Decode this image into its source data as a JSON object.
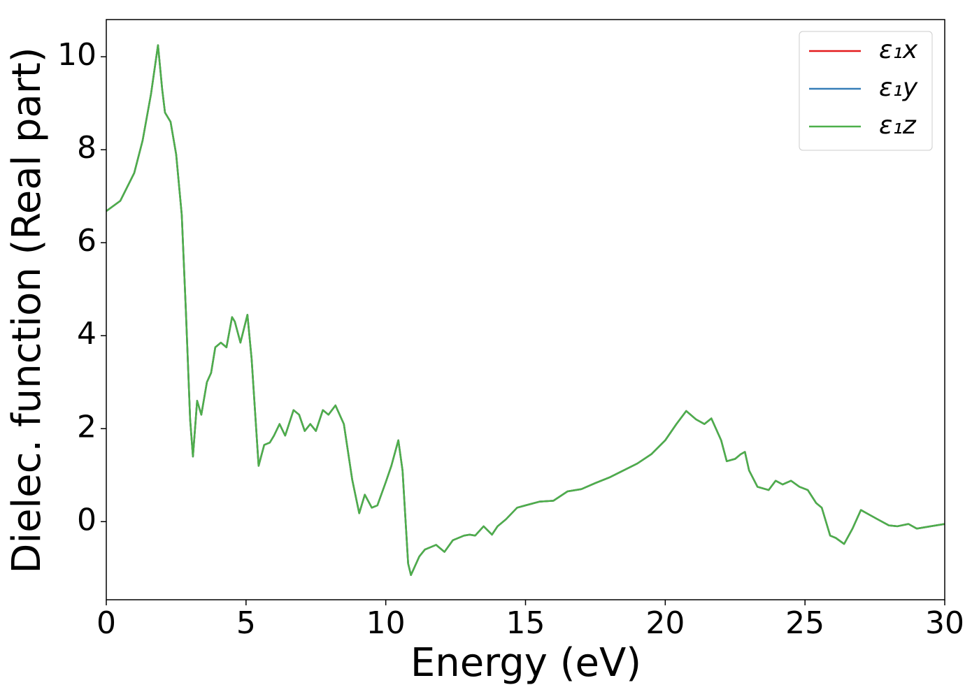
{
  "chart_data": {
    "type": "line",
    "xlabel": "Energy (eV)",
    "ylabel": "Dielec. function (Real part)",
    "xlim": [
      0,
      30
    ],
    "ylim": [
      -1.68,
      10.8
    ],
    "xticks": [
      0,
      5,
      10,
      15,
      20,
      25,
      30
    ],
    "yticks": [
      0,
      2,
      4,
      6,
      8,
      10
    ],
    "legend": "upper right",
    "x": [
      0,
      0.5,
      1.0,
      1.3,
      1.6,
      1.85,
      2.0,
      2.1,
      2.3,
      2.5,
      2.7,
      2.85,
      3.0,
      3.1,
      3.25,
      3.4,
      3.6,
      3.75,
      3.9,
      4.1,
      4.3,
      4.5,
      4.6,
      4.8,
      5.05,
      5.2,
      5.45,
      5.65,
      5.85,
      6.0,
      6.2,
      6.4,
      6.7,
      6.9,
      7.1,
      7.3,
      7.5,
      7.75,
      7.95,
      8.2,
      8.5,
      8.8,
      9.05,
      9.25,
      9.5,
      9.7,
      10.0,
      10.2,
      10.45,
      10.6,
      10.8,
      10.9,
      11.2,
      11.4,
      11.6,
      11.8,
      12.1,
      12.4,
      12.8,
      13.0,
      13.2,
      13.5,
      13.8,
      14.0,
      14.3,
      14.7,
      15.0,
      15.5,
      16.0,
      16.5,
      17.0,
      17.5,
      18.0,
      18.5,
      19.0,
      19.5,
      20.0,
      20.4,
      20.75,
      21.1,
      21.4,
      21.65,
      22.0,
      22.2,
      22.5,
      22.7,
      22.85,
      23.0,
      23.3,
      23.7,
      23.95,
      24.2,
      24.5,
      24.8,
      25.1,
      25.4,
      25.6,
      25.9,
      26.1,
      26.4,
      26.7,
      27.0,
      27.3,
      27.6,
      28.0,
      28.3,
      28.7,
      29.0,
      29.5,
      30.0
    ],
    "series": [
      {
        "name": "ε₁x",
        "color": "#e41a1c",
        "values": [
          6.68,
          6.9,
          7.5,
          8.2,
          9.2,
          10.25,
          9.3,
          8.8,
          8.6,
          7.9,
          6.6,
          4.5,
          2.2,
          1.4,
          2.6,
          2.3,
          3.0,
          3.2,
          3.75,
          3.85,
          3.75,
          4.4,
          4.3,
          3.85,
          4.45,
          3.5,
          1.2,
          1.65,
          1.7,
          1.85,
          2.1,
          1.85,
          2.4,
          2.3,
          1.95,
          2.1,
          1.95,
          2.4,
          2.3,
          2.5,
          2.1,
          0.9,
          0.18,
          0.58,
          0.3,
          0.35,
          0.85,
          1.2,
          1.75,
          1.1,
          -0.9,
          -1.15,
          -0.75,
          -0.6,
          -0.55,
          -0.5,
          -0.65,
          -0.4,
          -0.3,
          -0.28,
          -0.3,
          -0.1,
          -0.28,
          -0.1,
          0.05,
          0.3,
          0.35,
          0.43,
          0.45,
          0.65,
          0.7,
          0.83,
          0.95,
          1.1,
          1.25,
          1.45,
          1.75,
          2.1,
          2.38,
          2.2,
          2.1,
          2.22,
          1.75,
          1.3,
          1.35,
          1.45,
          1.5,
          1.1,
          0.75,
          0.68,
          0.88,
          0.8,
          0.88,
          0.75,
          0.68,
          0.4,
          0.3,
          -0.3,
          -0.35,
          -0.48,
          -0.15,
          0.25,
          0.15,
          0.05,
          -0.08,
          -0.1,
          -0.05,
          -0.15,
          -0.1,
          -0.05
        ]
      },
      {
        "name": "ε₁y",
        "color": "#377eb8",
        "values": [
          6.68,
          6.9,
          7.5,
          8.2,
          9.2,
          10.25,
          9.3,
          8.8,
          8.6,
          7.9,
          6.6,
          4.5,
          2.2,
          1.4,
          2.6,
          2.3,
          3.0,
          3.2,
          3.75,
          3.85,
          3.75,
          4.4,
          4.3,
          3.85,
          4.45,
          3.5,
          1.2,
          1.65,
          1.7,
          1.85,
          2.1,
          1.85,
          2.4,
          2.3,
          1.95,
          2.1,
          1.95,
          2.4,
          2.3,
          2.5,
          2.1,
          0.9,
          0.18,
          0.58,
          0.3,
          0.35,
          0.85,
          1.2,
          1.75,
          1.1,
          -0.9,
          -1.15,
          -0.75,
          -0.6,
          -0.55,
          -0.5,
          -0.65,
          -0.4,
          -0.3,
          -0.28,
          -0.3,
          -0.1,
          -0.28,
          -0.1,
          0.05,
          0.3,
          0.35,
          0.43,
          0.45,
          0.65,
          0.7,
          0.83,
          0.95,
          1.1,
          1.25,
          1.45,
          1.75,
          2.1,
          2.38,
          2.2,
          2.1,
          2.22,
          1.75,
          1.3,
          1.35,
          1.45,
          1.5,
          1.1,
          0.75,
          0.68,
          0.88,
          0.8,
          0.88,
          0.75,
          0.68,
          0.4,
          0.3,
          -0.3,
          -0.35,
          -0.48,
          -0.15,
          0.25,
          0.15,
          0.05,
          -0.08,
          -0.1,
          -0.05,
          -0.15,
          -0.1,
          -0.05
        ]
      },
      {
        "name": "ε₁z",
        "color": "#4daf4a",
        "values": [
          6.68,
          6.9,
          7.5,
          8.2,
          9.2,
          10.25,
          9.3,
          8.8,
          8.6,
          7.9,
          6.6,
          4.5,
          2.2,
          1.4,
          2.6,
          2.3,
          3.0,
          3.2,
          3.75,
          3.85,
          3.75,
          4.4,
          4.3,
          3.85,
          4.45,
          3.5,
          1.2,
          1.65,
          1.7,
          1.85,
          2.1,
          1.85,
          2.4,
          2.3,
          1.95,
          2.1,
          1.95,
          2.4,
          2.3,
          2.5,
          2.1,
          0.9,
          0.18,
          0.58,
          0.3,
          0.35,
          0.85,
          1.2,
          1.75,
          1.1,
          -0.9,
          -1.15,
          -0.75,
          -0.6,
          -0.55,
          -0.5,
          -0.65,
          -0.4,
          -0.3,
          -0.28,
          -0.3,
          -0.1,
          -0.28,
          -0.1,
          0.05,
          0.3,
          0.35,
          0.43,
          0.45,
          0.65,
          0.7,
          0.83,
          0.95,
          1.1,
          1.25,
          1.45,
          1.75,
          2.1,
          2.38,
          2.2,
          2.1,
          2.22,
          1.75,
          1.3,
          1.35,
          1.45,
          1.5,
          1.1,
          0.75,
          0.68,
          0.88,
          0.8,
          0.88,
          0.75,
          0.68,
          0.4,
          0.3,
          -0.3,
          -0.35,
          -0.48,
          -0.15,
          0.25,
          0.15,
          0.05,
          -0.08,
          -0.1,
          -0.05,
          -0.15,
          -0.1,
          -0.05
        ]
      }
    ]
  }
}
